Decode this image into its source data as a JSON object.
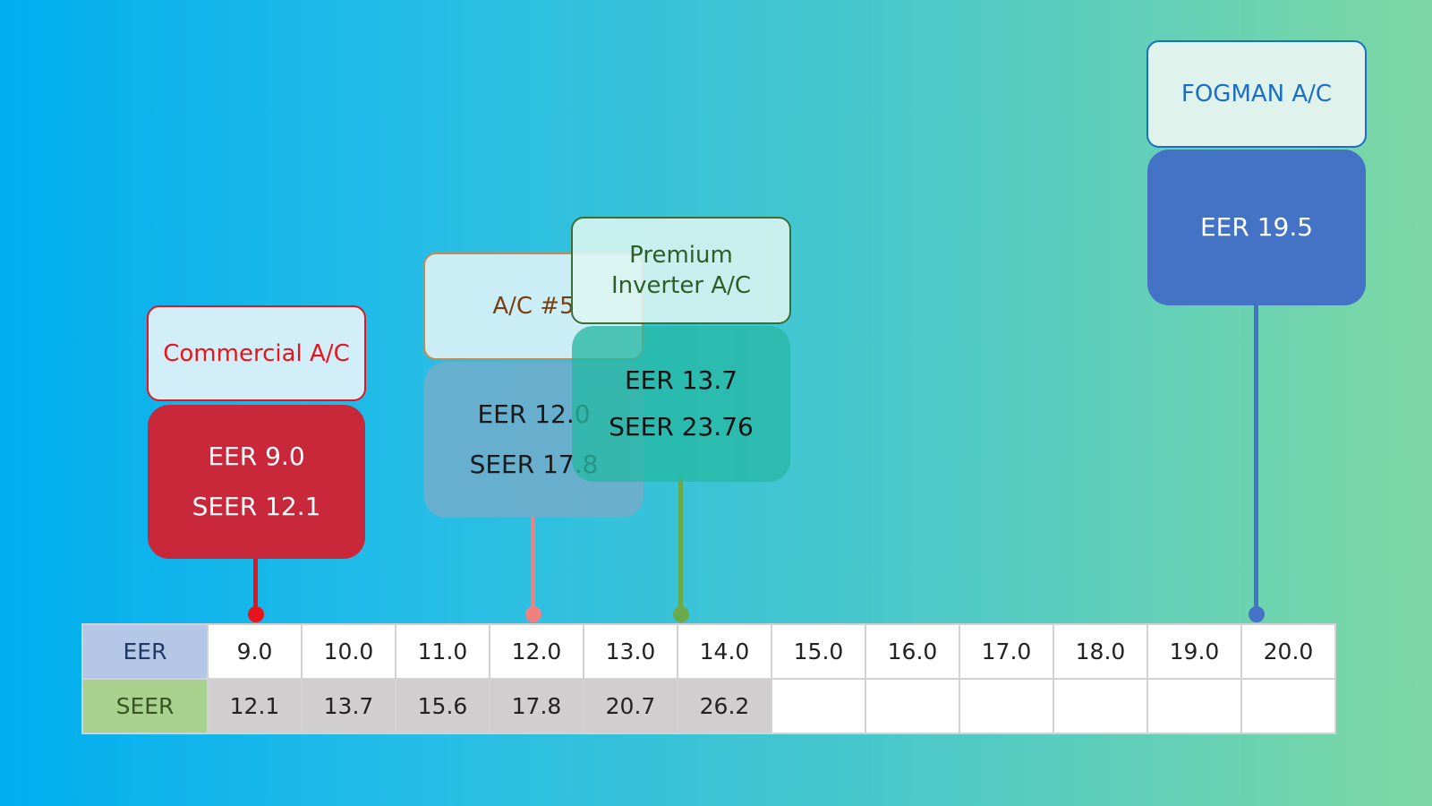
{
  "units": [
    {
      "id": "commercial",
      "name": "Commercial A/C",
      "eer_text": "EER 9.0",
      "seer_text": "SEER 12.1",
      "eer": 9.0,
      "title_color": "#e8141c",
      "body_color": "#c8283a",
      "stem_color": "#e8141c"
    },
    {
      "id": "ac5",
      "name": "A/C #5",
      "eer_text": "EER 12.0",
      "seer_text": "SEER 17.8",
      "eer": 12.0,
      "title_color": "#7a3f10",
      "body_color": "#6aa8c8",
      "stem_color": "#f08080"
    },
    {
      "id": "premium",
      "name": "Premium Inverter A/C",
      "eer_text": "EER 13.7",
      "seer_text": "SEER 23.76",
      "eer": 13.7,
      "title_color": "#2e5e28",
      "body_color": "#2ebca8",
      "stem_color": "#6aaa4a"
    },
    {
      "id": "fogman",
      "name": "FOGMAN A/C",
      "eer_text": "EER 19.5",
      "eer": 19.5,
      "title_color": "#1a6fc4",
      "body_color": "#4472c4",
      "stem_color": "#4472c4"
    }
  ],
  "table": {
    "eer_label": "EER",
    "seer_label": "SEER",
    "eer_values": [
      "9.0",
      "10.0",
      "11.0",
      "12.0",
      "13.0",
      "14.0",
      "15.0",
      "16.0",
      "17.0",
      "18.0",
      "19.0",
      "20.0"
    ],
    "seer_values": [
      "12.1",
      "13.7",
      "15.6",
      "17.8",
      "20.7",
      "26.2",
      "",
      "",
      "",
      "",
      "",
      ""
    ]
  }
}
